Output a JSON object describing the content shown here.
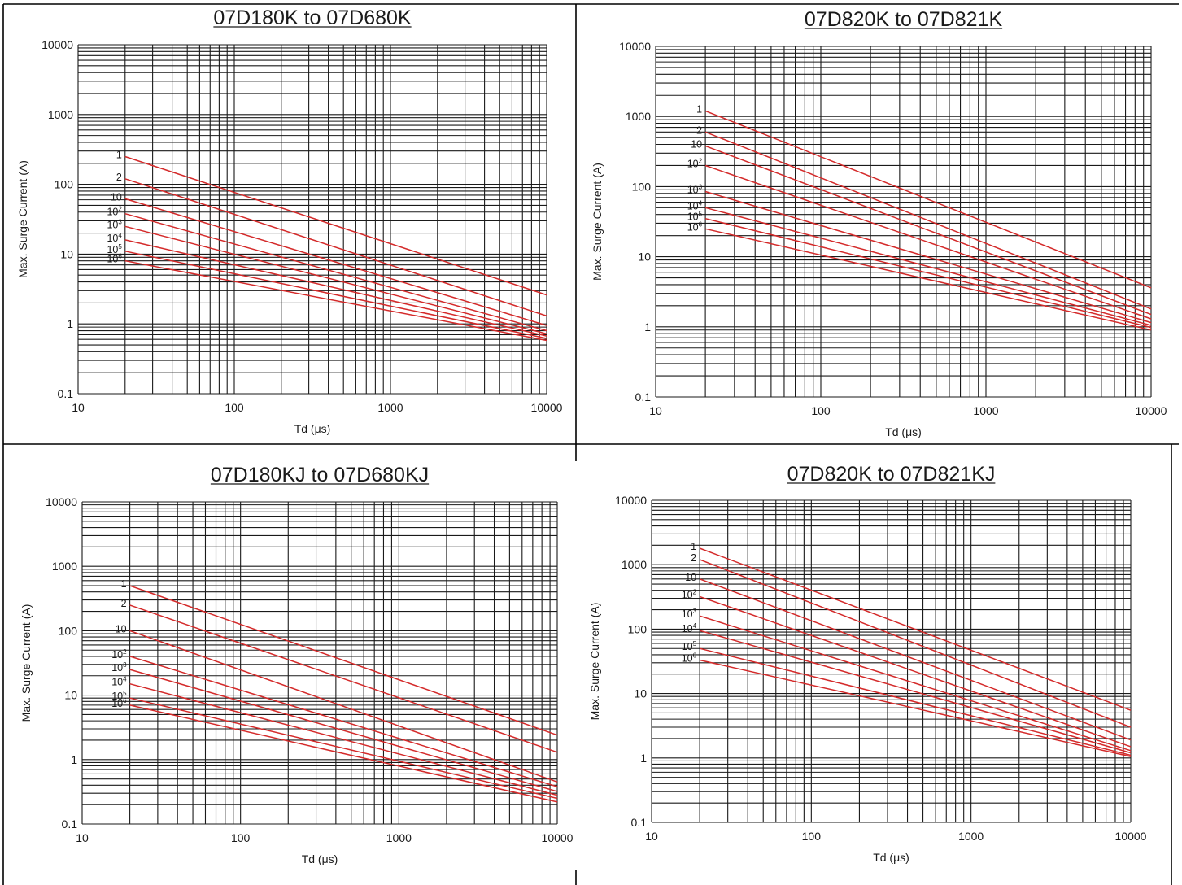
{
  "colors": {
    "curve": "#d42a2a",
    "grid": "#1a1a1a",
    "frame": "#000000"
  },
  "chart_data": [
    {
      "type": "line",
      "title": "07D180K to 07D680K",
      "xlabel": "Td (μs)",
      "ylabel": "Max. Surge Current (A)",
      "xscale": "log",
      "yscale": "log",
      "xlim": [
        10,
        10000
      ],
      "ylim": [
        0.1,
        10000
      ],
      "x_tick_labels": [
        "10",
        "100",
        "1000",
        "10000"
      ],
      "y_tick_labels": [
        "0.1",
        "1",
        "10",
        "100",
        "1000",
        "10000"
      ],
      "grid": true,
      "series": [
        {
          "name": "1",
          "label_base": "1",
          "label_exp": "",
          "x": [
            20,
            10000
          ],
          "y": [
            250,
            2.6
          ]
        },
        {
          "name": "2",
          "label_base": "2",
          "label_exp": "",
          "x": [
            20,
            10000
          ],
          "y": [
            120,
            1.3
          ]
        },
        {
          "name": "10",
          "label_base": "10",
          "label_exp": "",
          "x": [
            20,
            10000
          ],
          "y": [
            62,
            0.95
          ]
        },
        {
          "name": "10²",
          "label_base": "10",
          "label_exp": "2",
          "x": [
            20,
            10000
          ],
          "y": [
            38,
            0.8
          ]
        },
        {
          "name": "10³",
          "label_base": "10",
          "label_exp": "3",
          "x": [
            20,
            10000
          ],
          "y": [
            25,
            0.72
          ]
        },
        {
          "name": "10⁴",
          "label_base": "10",
          "label_exp": "4",
          "x": [
            20,
            10000
          ],
          "y": [
            16,
            0.67
          ]
        },
        {
          "name": "10⁵",
          "label_base": "10",
          "label_exp": "5",
          "x": [
            20,
            10000
          ],
          "y": [
            11,
            0.62
          ]
        },
        {
          "name": "10⁶",
          "label_base": "10",
          "label_exp": "6",
          "x": [
            20,
            10000
          ],
          "y": [
            8,
            0.58
          ]
        }
      ]
    },
    {
      "type": "line",
      "title": "07D820K to 07D821K",
      "xlabel": "Td (μs)",
      "ylabel": "Max. Surge Current (A)",
      "xscale": "log",
      "yscale": "log",
      "xlim": [
        10,
        10000
      ],
      "ylim": [
        0.1,
        10000
      ],
      "x_tick_labels": [
        "10",
        "100",
        "1000",
        "10000"
      ],
      "y_tick_labels": [
        "0.1",
        "1",
        "10",
        "100",
        "1000",
        "10000"
      ],
      "grid": true,
      "series": [
        {
          "name": "1",
          "label_base": "1",
          "label_exp": "",
          "x": [
            20,
            10000
          ],
          "y": [
            1200,
            3.6
          ]
        },
        {
          "name": "2",
          "label_base": "2",
          "label_exp": "",
          "x": [
            20,
            10000
          ],
          "y": [
            600,
            1.8
          ]
        },
        {
          "name": "10",
          "label_base": "10",
          "label_exp": "",
          "x": [
            20,
            10000
          ],
          "y": [
            380,
            1.5
          ]
        },
        {
          "name": "10²",
          "label_base": "10",
          "label_exp": "2",
          "x": [
            20,
            10000
          ],
          "y": [
            200,
            1.3
          ]
        },
        {
          "name": "10³",
          "label_base": "10",
          "label_exp": "3",
          "x": [
            20,
            10000
          ],
          "y": [
            85,
            1.15
          ]
        },
        {
          "name": "10⁴",
          "label_base": "10",
          "label_exp": "4",
          "x": [
            20,
            10000
          ],
          "y": [
            50,
            1.05
          ]
        },
        {
          "name": "10⁵",
          "label_base": "10",
          "label_exp": "5",
          "x": [
            20,
            10000
          ],
          "y": [
            35,
            0.98
          ]
        },
        {
          "name": "10⁶",
          "label_base": "10",
          "label_exp": "6",
          "x": [
            20,
            10000
          ],
          "y": [
            25,
            0.9
          ]
        }
      ]
    },
    {
      "type": "line",
      "title": "07D180KJ to 07D680KJ",
      "xlabel": "Td (μs)",
      "ylabel": "Max. Surge Current (A)",
      "xscale": "log",
      "yscale": "log",
      "xlim": [
        10,
        10000
      ],
      "ylim": [
        0.1,
        10000
      ],
      "x_tick_labels": [
        "10",
        "100",
        "1000",
        "10000"
      ],
      "y_tick_labels": [
        "0.1",
        "1",
        "10",
        "100",
        "1000",
        "10000"
      ],
      "grid": true,
      "series": [
        {
          "name": "1",
          "label_base": "1",
          "label_exp": "",
          "x": [
            20,
            10000
          ],
          "y": [
            500,
            2.4
          ]
        },
        {
          "name": "2",
          "label_base": "2",
          "label_exp": "",
          "x": [
            20,
            10000
          ],
          "y": [
            250,
            1.3
          ]
        },
        {
          "name": "10",
          "label_base": "10",
          "label_exp": "",
          "x": [
            20,
            10000
          ],
          "y": [
            100,
            0.45
          ]
        },
        {
          "name": "10²",
          "label_base": "10",
          "label_exp": "2",
          "x": [
            20,
            10000
          ],
          "y": [
            40,
            0.38
          ]
        },
        {
          "name": "10³",
          "label_base": "10",
          "label_exp": "3",
          "x": [
            20,
            10000
          ],
          "y": [
            25,
            0.32
          ]
        },
        {
          "name": "10⁴",
          "label_base": "10",
          "label_exp": "4",
          "x": [
            20,
            10000
          ],
          "y": [
            15,
            0.28
          ]
        },
        {
          "name": "10⁵",
          "label_base": "10",
          "label_exp": "5",
          "x": [
            20,
            10000
          ],
          "y": [
            9,
            0.25
          ]
        },
        {
          "name": "10⁶",
          "label_base": "10",
          "label_exp": "6",
          "x": [
            20,
            10000
          ],
          "y": [
            7,
            0.22
          ]
        }
      ]
    },
    {
      "type": "line",
      "title": "07D820K to 07D821KJ",
      "xlabel": "Td (μs)",
      "ylabel": "Max. Surge Current (A)",
      "xscale": "log",
      "yscale": "log",
      "xlim": [
        10,
        10000
      ],
      "ylim": [
        0.1,
        10000
      ],
      "x_tick_labels": [
        "10",
        "100",
        "1000",
        "10000"
      ],
      "y_tick_labels": [
        "0.1",
        "1",
        "10",
        "100",
        "1000",
        "10000"
      ],
      "grid": true,
      "series": [
        {
          "name": "1",
          "label_base": "1",
          "label_exp": "",
          "x": [
            20,
            10000
          ],
          "y": [
            1800,
            5.5
          ]
        },
        {
          "name": "2",
          "label_base": "2",
          "label_exp": "",
          "x": [
            20,
            10000
          ],
          "y": [
            1200,
            3
          ]
        },
        {
          "name": "10",
          "label_base": "10",
          "label_exp": "",
          "x": [
            20,
            10000
          ],
          "y": [
            600,
            1.9
          ]
        },
        {
          "name": "10²",
          "label_base": "10",
          "label_exp": "2",
          "x": [
            20,
            10000
          ],
          "y": [
            320,
            1.5
          ]
        },
        {
          "name": "10³",
          "label_base": "10",
          "label_exp": "3",
          "x": [
            20,
            10000
          ],
          "y": [
            160,
            1.3
          ]
        },
        {
          "name": "10⁴",
          "label_base": "10",
          "label_exp": "4",
          "x": [
            20,
            10000
          ],
          "y": [
            95,
            1.2
          ]
        },
        {
          "name": "10⁵",
          "label_base": "10",
          "label_exp": "5",
          "x": [
            20,
            10000
          ],
          "y": [
            50,
            1.1
          ]
        },
        {
          "name": "10⁶",
          "label_base": "10",
          "label_exp": "6",
          "x": [
            20,
            10000
          ],
          "y": [
            33,
            1.05
          ]
        }
      ]
    }
  ]
}
